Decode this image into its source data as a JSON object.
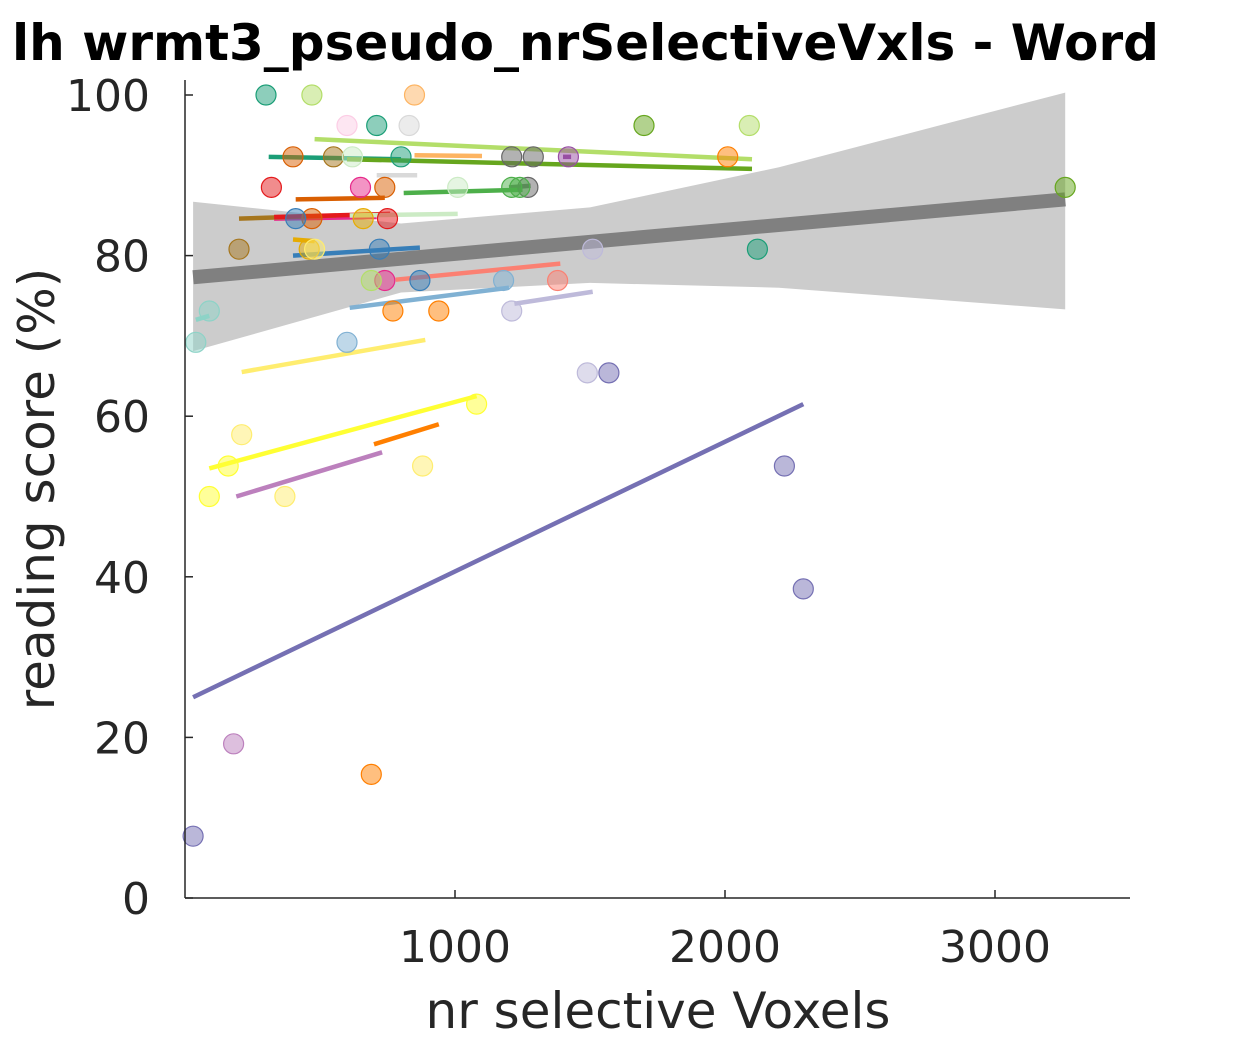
{
  "chart_data": {
    "type": "scatter",
    "title": "lh wrmt3_pseudo_nrSelectiveVxls - Word",
    "xlabel": "nr selective Voxels",
    "ylabel": "reading score (%)",
    "xlim": [
      0,
      3500
    ],
    "ylim": [
      0,
      100
    ],
    "xticks": [
      1000,
      2000,
      3000
    ],
    "yticks": [
      0,
      20,
      40,
      60,
      80,
      100
    ],
    "grid": false,
    "legend": "none",
    "group_fit": {
      "x": [
        30,
        3260
      ],
      "y": [
        77.3,
        87.0
      ],
      "color": "#808080"
    },
    "confidence_band": {
      "x": [
        30,
        800,
        1500,
        2200,
        3260
      ],
      "upper": [
        86.7,
        84.0,
        86.0,
        91.0,
        100.3
      ],
      "lower": [
        68.1,
        75.4,
        76.6,
        76.0,
        73.3
      ],
      "color": "#cccccc"
    },
    "series": [
      {
        "color": "#1b9e77",
        "fit": [
          [
            310,
            92.3
          ],
          [
            800,
            92.0
          ]
        ],
        "points": [
          [
            300,
            100
          ],
          [
            710,
            96.2
          ],
          [
            800,
            92.3
          ],
          [
            2120,
            80.8
          ]
        ]
      },
      {
        "color": "#d95f02",
        "fit": [
          [
            410,
            87.0
          ],
          [
            740,
            87.2
          ]
        ],
        "points": [
          [
            400,
            92.3
          ],
          [
            470,
            84.6
          ],
          [
            740,
            88.5
          ]
        ]
      },
      {
        "color": "#e7298a",
        "fit": [
          [
            330,
            84.6
          ],
          [
            710,
            84.8
          ]
        ],
        "points": [
          [
            650,
            88.5
          ],
          [
            740,
            76.9
          ]
        ]
      },
      {
        "color": "#66a61e",
        "fit": [
          [
            600,
            92.0
          ],
          [
            2100,
            90.8
          ]
        ],
        "points": [
          [
            1700,
            96.2
          ],
          [
            3260,
            88.5
          ]
        ]
      },
      {
        "color": "#e6ab02",
        "fit": [
          [
            400,
            82.0
          ],
          [
            480,
            81.8
          ]
        ],
        "points": [
          [
            460,
            80.8
          ],
          [
            660,
            84.6
          ]
        ]
      },
      {
        "color": "#a6761d",
        "fit": [
          [
            200,
            84.6
          ],
          [
            560,
            85.0
          ]
        ],
        "points": [
          [
            200,
            80.8
          ],
          [
            550,
            92.3
          ]
        ]
      },
      {
        "color": "#666666",
        "fit": [
          [
            1200,
            88.5
          ],
          [
            1280,
            88.7
          ]
        ],
        "points": [
          [
            1210,
            92.3
          ],
          [
            1290,
            92.3
          ],
          [
            1270,
            88.5
          ]
        ]
      },
      {
        "color": "#e41a1c",
        "fit": [
          [
            330,
            84.8
          ],
          [
            760,
            85.2
          ]
        ],
        "points": [
          [
            320,
            88.5
          ],
          [
            750,
            84.6
          ]
        ]
      },
      {
        "color": "#377eb8",
        "fit": [
          [
            400,
            80.0
          ],
          [
            870,
            81.0
          ]
        ],
        "points": [
          [
            720,
            80.8
          ],
          [
            870,
            76.9
          ],
          [
            410,
            84.6
          ]
        ]
      },
      {
        "color": "#4daf4a",
        "fit": [
          [
            810,
            87.8
          ],
          [
            1250,
            88.2
          ]
        ],
        "points": [
          [
            1210,
            88.5
          ],
          [
            1240,
            88.5
          ]
        ]
      },
      {
        "color": "#984ea3",
        "fit": [
          [
            1400,
            92.3
          ],
          [
            1430,
            92.3
          ]
        ],
        "points": [
          [
            1420,
            92.3
          ]
        ]
      },
      {
        "color": "#ff7f00",
        "fit": [
          [
            700,
            56.5
          ],
          [
            940,
            59.0
          ]
        ],
        "points": [
          [
            690,
            15.4
          ],
          [
            770,
            73.1
          ],
          [
            940,
            73.1
          ],
          [
            2010,
            92.3
          ]
        ]
      },
      {
        "color": "#ffff33",
        "fit": [
          [
            90,
            53.5
          ],
          [
            1080,
            62.5
          ]
        ],
        "points": [
          [
            90,
            50.0
          ],
          [
            160,
            53.8
          ],
          [
            1080,
            61.5
          ]
        ]
      },
      {
        "color": "#fb8072",
        "fit": [
          [
            780,
            77.0
          ],
          [
            1390,
            79.0
          ]
        ],
        "points": [
          [
            1380,
            76.9
          ]
        ]
      },
      {
        "color": "#80b1d3",
        "fit": [
          [
            610,
            73.5
          ],
          [
            1200,
            76.0
          ]
        ],
        "points": [
          [
            600,
            69.2
          ],
          [
            1180,
            76.9
          ]
        ]
      },
      {
        "color": "#bebada",
        "fit": [
          [
            1220,
            74.0
          ],
          [
            1510,
            75.5
          ]
        ],
        "points": [
          [
            1210,
            73.1
          ],
          [
            1490,
            65.4
          ],
          [
            1510,
            80.8
          ]
        ]
      },
      {
        "color": "#8dd3c7",
        "fit": [
          [
            40,
            72.0
          ],
          [
            90,
            72.5
          ]
        ],
        "points": [
          [
            40,
            69.2
          ],
          [
            90,
            73.1
          ]
        ]
      },
      {
        "color": "#ffed6f",
        "fit": [
          [
            210,
            65.5
          ],
          [
            890,
            69.5
          ]
        ],
        "points": [
          [
            210,
            57.7
          ],
          [
            880,
            53.8
          ],
          [
            480,
            80.8
          ]
        ]
      },
      {
        "color": "#b3de69",
        "fit": [
          [
            480,
            94.5
          ],
          [
            2100,
            92.0
          ]
        ],
        "points": [
          [
            470,
            100
          ],
          [
            2090,
            96.2
          ],
          [
            690,
            76.9
          ]
        ]
      },
      {
        "color": "#bc80bd",
        "fit": [
          [
            190,
            50.0
          ],
          [
            730,
            55.5
          ]
        ],
        "points": [
          [
            180,
            19.2
          ]
        ]
      },
      {
        "color": "#ffed6f",
        "fit": [
          [
            360,
            50.0
          ],
          [
            360,
            50.0
          ]
        ],
        "points": [
          [
            370,
            50.0
          ]
        ]
      },
      {
        "color": "#7570b3",
        "fit": [
          [
            30,
            25.0
          ],
          [
            2290,
            61.5
          ]
        ],
        "points": [
          [
            30,
            7.7
          ],
          [
            1570,
            65.4
          ],
          [
            2220,
            53.8
          ],
          [
            2290,
            38.5
          ]
        ]
      },
      {
        "color": "#fccde5",
        "fit": [
          [
            600,
            96.0
          ],
          [
            600,
            96.0
          ]
        ],
        "points": [
          [
            600,
            96.2
          ]
        ]
      },
      {
        "color": "#ccebc5",
        "fit": [
          [
            610,
            85.0
          ],
          [
            1010,
            85.2
          ]
        ],
        "points": [
          [
            1010,
            88.5
          ],
          [
            620,
            92.3
          ]
        ]
      },
      {
        "color": "#fdb462",
        "fit": [
          [
            850,
            92.5
          ],
          [
            1100,
            92.4
          ]
        ],
        "points": [
          [
            850,
            100
          ]
        ]
      },
      {
        "color": "#d9d9d9",
        "fit": [
          [
            710,
            90.0
          ],
          [
            860,
            90.0
          ]
        ],
        "points": [
          [
            830,
            96.2
          ]
        ]
      }
    ]
  }
}
